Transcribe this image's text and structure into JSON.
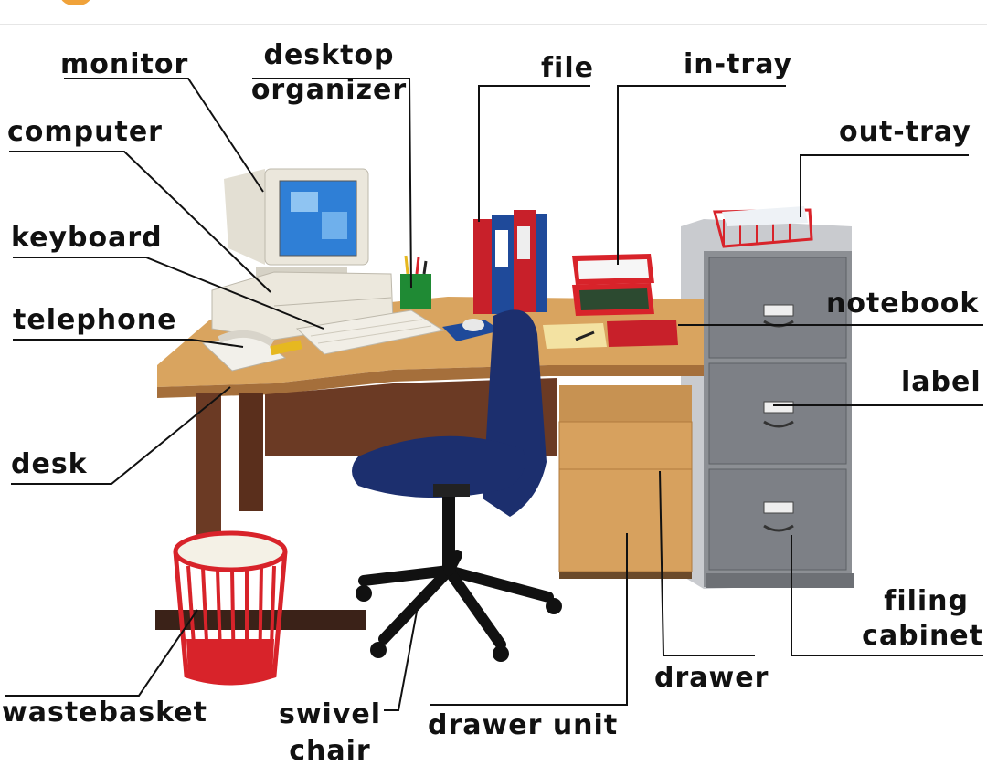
{
  "labels": {
    "monitor": "monitor",
    "desktop_organizer_line1": "desktop",
    "desktop_organizer_line2": "organizer",
    "file": "file",
    "in_tray": "in-tray",
    "out_tray": "out-tray",
    "computer": "computer",
    "keyboard": "keyboard",
    "telephone": "telephone",
    "notebook": "notebook",
    "label": "label",
    "desk": "desk",
    "filing_cabinet_line1": "filing",
    "filing_cabinet_line2": "cabinet",
    "drawer": "drawer",
    "wastebasket": "wastebasket",
    "swivel_chair_line1": "swivel",
    "swivel_chair_line2": "chair",
    "drawer_unit": "drawer unit"
  },
  "colors": {
    "desk_top": "#d9a45f",
    "desk_body": "#6b3a24",
    "chair": "#1c2f6e",
    "cabinet": "#8c8f94",
    "drawer_unit": "#d7a15e",
    "wastebasket": "#d8232a",
    "binder_red": "#c8202a",
    "binder_blue": "#1f4a9a",
    "monitor_screen": "#2f7fd6",
    "organizer": "#1f8a34"
  }
}
